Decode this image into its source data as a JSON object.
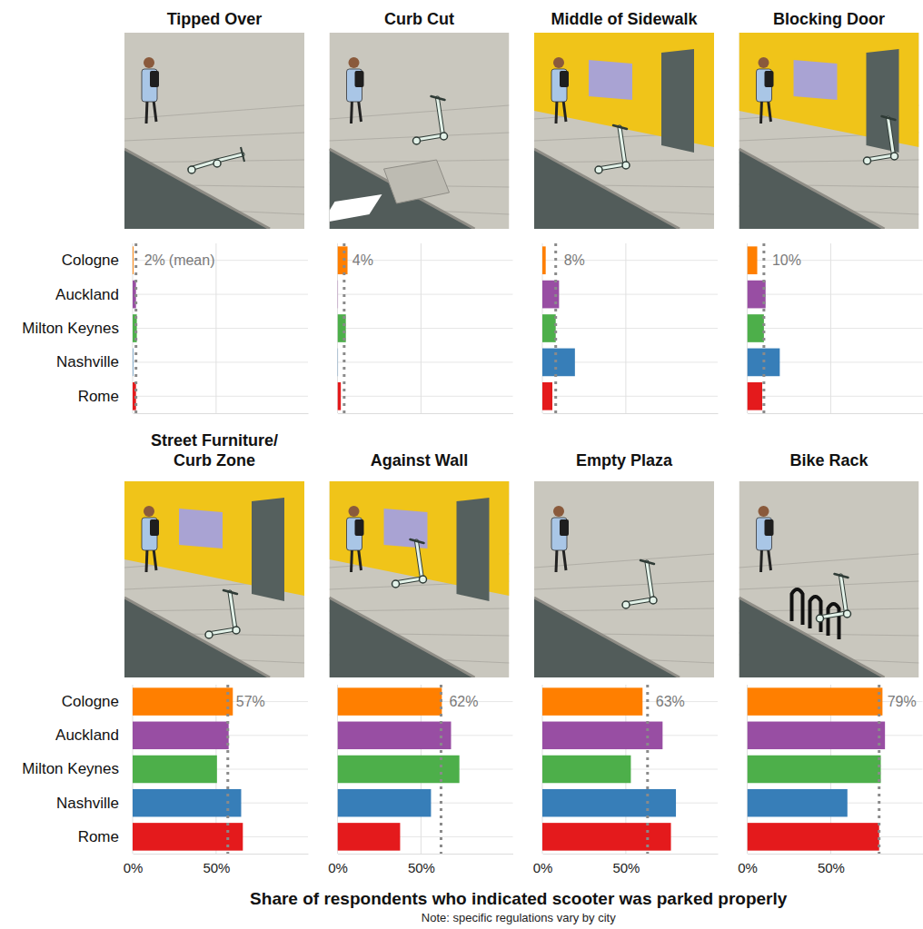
{
  "chart_data": [
    {
      "type": "bar",
      "orientation": "horizontal",
      "title": "Tipped Over",
      "categories": [
        "Cologne",
        "Auckland",
        "Milton Keynes",
        "Nashville",
        "Rome"
      ],
      "values": [
        0.5,
        2,
        2.5,
        0.3,
        2
      ],
      "colors": [
        "#ff7f00",
        "#984ea3",
        "#4daf4a",
        "#377eb8",
        "#e41a1c"
      ],
      "xlim": [
        0,
        105
      ],
      "xticks": [
        {
          "value": 0,
          "label": "0%"
        },
        {
          "value": 50,
          "label": "50%"
        }
      ],
      "grid": true,
      "tick_labels": "y",
      "mean": 2,
      "mean_label": "2%",
      "mean_note": "(mean)"
    },
    {
      "type": "bar",
      "orientation": "horizontal",
      "title": "Curb Cut",
      "categories": [
        "Cologne",
        "Auckland",
        "Milton Keynes",
        "Nashville",
        "Rome"
      ],
      "values": [
        6,
        0.3,
        5,
        0.3,
        2
      ],
      "colors": [
        "#ff7f00",
        "#984ea3",
        "#4daf4a",
        "#377eb8",
        "#e41a1c"
      ],
      "xlim": [
        0,
        105
      ],
      "xticks": [
        {
          "value": 0,
          "label": "0%"
        },
        {
          "value": 50,
          "label": "50%"
        }
      ],
      "grid": true,
      "tick_labels": false,
      "mean": 4,
      "mean_label": "4%"
    },
    {
      "type": "bar",
      "orientation": "horizontal",
      "title": "Middle of Sidewalk",
      "categories": [
        "Cologne",
        "Auckland",
        "Milton Keynes",
        "Nashville",
        "Rome"
      ],
      "values": [
        2,
        10,
        8,
        19.5,
        6
      ],
      "colors": [
        "#ff7f00",
        "#984ea3",
        "#4daf4a",
        "#377eb8",
        "#e41a1c"
      ],
      "xlim": [
        0,
        105
      ],
      "xticks": [
        {
          "value": 0,
          "label": "0%"
        },
        {
          "value": 50,
          "label": "50%"
        }
      ],
      "grid": true,
      "tick_labels": false,
      "mean": 8,
      "mean_label": "8%"
    },
    {
      "type": "bar",
      "orientation": "horizontal",
      "title": "Blocking Door",
      "categories": [
        "Cologne",
        "Auckland",
        "Milton Keynes",
        "Nashville",
        "Rome"
      ],
      "values": [
        6,
        11,
        10,
        19.5,
        9
      ],
      "colors": [
        "#ff7f00",
        "#984ea3",
        "#4daf4a",
        "#377eb8",
        "#e41a1c"
      ],
      "xlim": [
        0,
        105
      ],
      "xticks": [
        {
          "value": 0,
          "label": "0%"
        },
        {
          "value": 50,
          "label": "50%"
        }
      ],
      "grid": true,
      "tick_labels": false,
      "mean": 10,
      "mean_label": "10%"
    },
    {
      "type": "bar",
      "orientation": "horizontal",
      "title": "Street Furniture/Curb Zone",
      "categories": [
        "Cologne",
        "Auckland",
        "Milton Keynes",
        "Nashville",
        "Rome"
      ],
      "values": [
        60,
        57.5,
        50.5,
        65,
        66
      ],
      "colors": [
        "#ff7f00",
        "#984ea3",
        "#4daf4a",
        "#377eb8",
        "#e41a1c"
      ],
      "xlim": [
        0,
        105
      ],
      "xticks": [
        {
          "value": 0,
          "label": "0%"
        },
        {
          "value": 50,
          "label": "50%"
        }
      ],
      "grid": true,
      "tick_labels": true,
      "mean": 57,
      "mean_label": "57%"
    },
    {
      "type": "bar",
      "orientation": "horizontal",
      "title": "Against Wall",
      "categories": [
        "Cologne",
        "Auckland",
        "Milton Keynes",
        "Nashville",
        "Rome"
      ],
      "values": [
        62.5,
        68,
        73,
        56,
        37.5
      ],
      "colors": [
        "#ff7f00",
        "#984ea3",
        "#4daf4a",
        "#377eb8",
        "#e41a1c"
      ],
      "xlim": [
        0,
        105
      ],
      "xticks": [
        {
          "value": 0,
          "label": "0%"
        },
        {
          "value": 50,
          "label": "50%"
        }
      ],
      "grid": true,
      "tick_labels": "x",
      "mean": 62,
      "mean_label": "62%"
    },
    {
      "type": "bar",
      "orientation": "horizontal",
      "title": "Empty Plaza",
      "categories": [
        "Cologne",
        "Auckland",
        "Milton Keynes",
        "Nashville",
        "Rome"
      ],
      "values": [
        60,
        72,
        53,
        80,
        77
      ],
      "colors": [
        "#ff7f00",
        "#984ea3",
        "#4daf4a",
        "#377eb8",
        "#e41a1c"
      ],
      "xlim": [
        0,
        105
      ],
      "xticks": [
        {
          "value": 0,
          "label": "0%"
        },
        {
          "value": 50,
          "label": "50%"
        }
      ],
      "grid": true,
      "tick_labels": "x",
      "mean": 63,
      "mean_label": "63%"
    },
    {
      "type": "bar",
      "orientation": "horizontal",
      "title": "Bike Rack",
      "categories": [
        "Cologne",
        "Auckland",
        "Milton Keynes",
        "Nashville",
        "Rome"
      ],
      "values": [
        81,
        82.5,
        80,
        60,
        79
      ],
      "colors": [
        "#ff7f00",
        "#984ea3",
        "#4daf4a",
        "#377eb8",
        "#e41a1c"
      ],
      "xlim": [
        0,
        105
      ],
      "xticks": [
        {
          "value": 0,
          "label": "0%"
        },
        {
          "value": 50,
          "label": "50%"
        }
      ],
      "grid": true,
      "tick_labels": "x",
      "mean": 79,
      "mean_label": "79%"
    }
  ],
  "x_label": "Share of respondents who indicated scooter was parked properly",
  "note": "Note: specific regulations vary by city"
}
